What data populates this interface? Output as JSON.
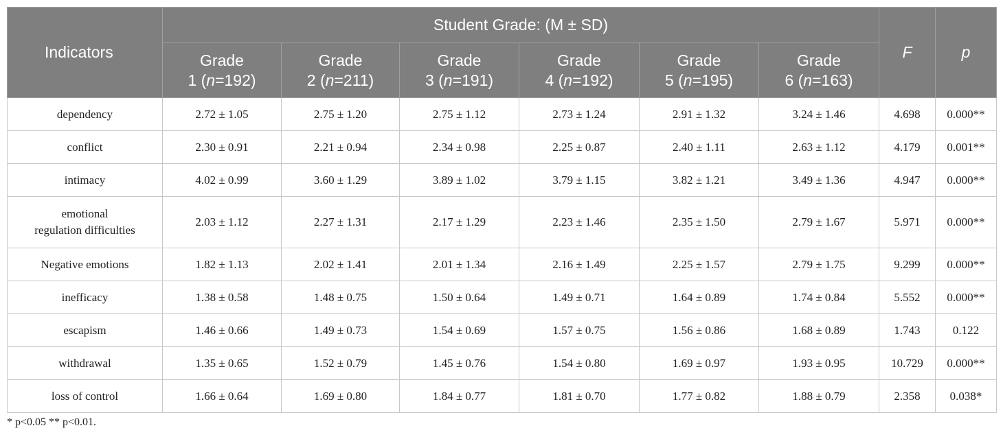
{
  "header": {
    "indicators": "Indicators",
    "group_title": "Student Grade: (M ± SD)",
    "grade_word": "Grade",
    "grades": [
      {
        "num": "1 (",
        "n": "n",
        "rest": "=192)"
      },
      {
        "num": "2 (",
        "n": "n",
        "rest": "=211)"
      },
      {
        "num": "3 (",
        "n": "n",
        "rest": "=191)"
      },
      {
        "num": "4 (",
        "n": "n",
        "rest": "=192)"
      },
      {
        "num": "5 (",
        "n": "n",
        "rest": "=195)"
      },
      {
        "num": "6 (",
        "n": "n",
        "rest": "=163)"
      }
    ],
    "f": "F",
    "p": "p"
  },
  "rows": [
    {
      "label": "dependency",
      "vals": [
        "2.72 ± 1.05",
        "2.75 ± 1.20",
        "2.75 ± 1.12",
        "2.73 ± 1.24",
        "2.91 ± 1.32",
        "3.24 ± 1.46"
      ],
      "f": "4.698",
      "p": "0.000**"
    },
    {
      "label": "conflict",
      "vals": [
        "2.30 ± 0.91",
        "2.21 ± 0.94",
        "2.34 ± 0.98",
        "2.25 ± 0.87",
        "2.40 ± 1.11",
        "2.63 ± 1.12"
      ],
      "f": "4.179",
      "p": "0.001**"
    },
    {
      "label": "intimacy",
      "vals": [
        "4.02 ± 0.99",
        "3.60 ± 1.29",
        "3.89 ± 1.02",
        "3.79 ± 1.15",
        "3.82 ± 1.21",
        "3.49 ± 1.36"
      ],
      "f": "4.947",
      "p": "0.000**"
    },
    {
      "label_lines": [
        "emotional",
        "regulation difficulties"
      ],
      "vals": [
        "2.03 ± 1.12",
        "2.27 ± 1.31",
        "2.17 ± 1.29",
        "2.23 ± 1.46",
        "2.35 ± 1.50",
        "2.79 ± 1.67"
      ],
      "f": "5.971",
      "p": "0.000**"
    },
    {
      "label": "Negative emotions",
      "vals": [
        "1.82 ± 1.13",
        "2.02 ± 1.41",
        "2.01 ± 1.34",
        "2.16 ± 1.49",
        "2.25 ± 1.57",
        "2.79 ± 1.75"
      ],
      "f": "9.299",
      "p": "0.000**"
    },
    {
      "label": "inefficacy",
      "vals": [
        "1.38 ± 0.58",
        "1.48 ± 0.75",
        "1.50 ± 0.64",
        "1.49 ± 0.71",
        "1.64 ± 0.89",
        "1.74 ± 0.84"
      ],
      "f": "5.552",
      "p": "0.000**"
    },
    {
      "label": "escapism",
      "vals": [
        "1.46 ± 0.66",
        "1.49 ± 0.73",
        "1.54 ± 0.69",
        "1.57 ± 0.75",
        "1.56 ± 0.86",
        "1.68 ± 0.89"
      ],
      "f": "1.743",
      "p": "0.122"
    },
    {
      "label": "withdrawal",
      "vals": [
        "1.35 ± 0.65",
        "1.52 ± 0.79",
        "1.45 ± 0.76",
        "1.54 ± 0.80",
        "1.69 ± 0.97",
        "1.93 ± 0.95"
      ],
      "f": "10.729",
      "p": "0.000**"
    },
    {
      "label": "loss of control",
      "vals": [
        "1.66 ± 0.64",
        "1.69 ± 0.80",
        "1.84 ± 0.77",
        "1.81 ± 0.70",
        "1.77 ± 0.82",
        "1.88 ± 0.79"
      ],
      "f": "2.358",
      "p": "0.038*"
    }
  ],
  "footnote": "* p<0.05 ** p<0.01.",
  "colors": {
    "header_bg": "#7f7f7f",
    "header_text": "#ffffff",
    "body_text": "#222222",
    "border": "#c8c8c8"
  }
}
